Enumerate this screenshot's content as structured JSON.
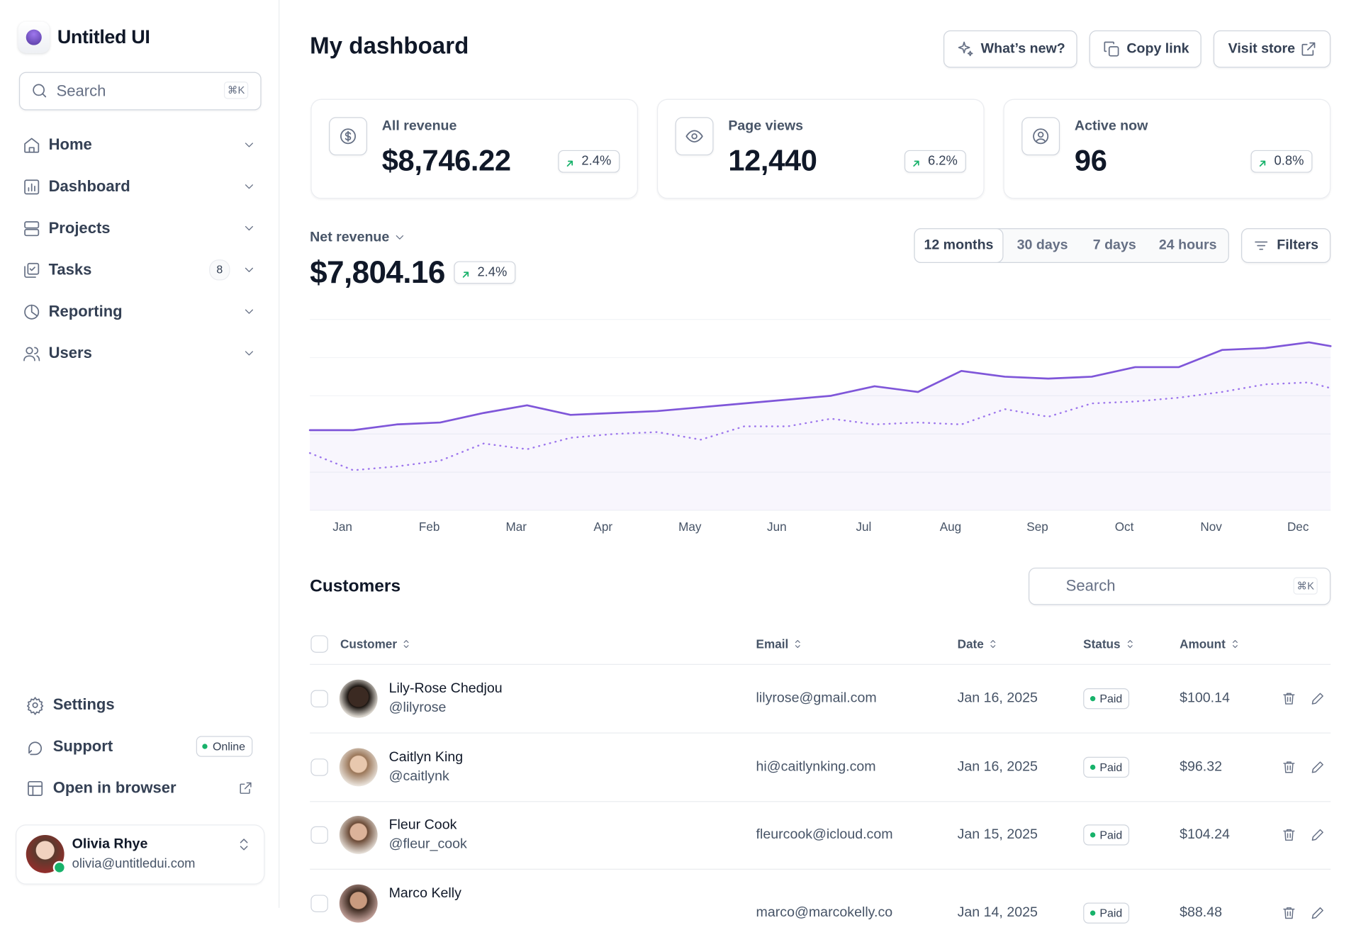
{
  "sidebar": {
    "brand": "Untitled UI",
    "search": {
      "placeholder": "Search",
      "shortcut": "⌘K"
    },
    "nav": [
      {
        "label": "Home",
        "icon": "home"
      },
      {
        "label": "Dashboard",
        "icon": "dashboard"
      },
      {
        "label": "Projects",
        "icon": "projects"
      },
      {
        "label": "Tasks",
        "icon": "tasks",
        "badge": "8"
      },
      {
        "label": "Reporting",
        "icon": "reporting"
      },
      {
        "label": "Users",
        "icon": "users"
      }
    ],
    "footer_nav": [
      {
        "label": "Settings",
        "icon": "settings"
      },
      {
        "label": "Support",
        "icon": "support",
        "status": "Online"
      },
      {
        "label": "Open in browser",
        "icon": "browser"
      }
    ],
    "user": {
      "name": "Olivia Rhye",
      "email": "olivia@untitledui.com"
    }
  },
  "header": {
    "title": "My dashboard",
    "actions": [
      "What’s new?",
      "Copy link",
      "Visit store"
    ]
  },
  "stats": [
    {
      "label": "All revenue",
      "value": "$8,746.22",
      "change": "2.4%",
      "icon": "dollar"
    },
    {
      "label": "Page views",
      "value": "12,440",
      "change": "6.2%",
      "icon": "eye"
    },
    {
      "label": "Active now",
      "value": "96",
      "change": "0.8%",
      "icon": "user"
    }
  ],
  "revenue": {
    "label": "Net revenue",
    "value": "$7,804.16",
    "change": "2.4%",
    "ranges": [
      "12 months",
      "30 days",
      "7 days",
      "24 hours"
    ],
    "active_range": 0,
    "filters": "Filters"
  },
  "chart_data": {
    "type": "line",
    "x": [
      0,
      1,
      2,
      3,
      4,
      5,
      6,
      7,
      8,
      9,
      10,
      11,
      12,
      13,
      14,
      15,
      16,
      17,
      18,
      19,
      20,
      21,
      22,
      23,
      23.5
    ],
    "xlim": [
      0,
      23.5
    ],
    "xticks": [
      {
        "value": 0.75,
        "label": "Jan"
      },
      {
        "value": 2.75,
        "label": "Feb"
      },
      {
        "value": 4.75,
        "label": "Mar"
      },
      {
        "value": 6.75,
        "label": "Apr"
      },
      {
        "value": 8.75,
        "label": "May"
      },
      {
        "value": 10.75,
        "label": "Jun"
      },
      {
        "value": 12.75,
        "label": "Jul"
      },
      {
        "value": 14.75,
        "label": "Aug"
      },
      {
        "value": 16.75,
        "label": "Sep"
      },
      {
        "value": 18.75,
        "label": "Oct"
      },
      {
        "value": 20.75,
        "label": "Nov"
      },
      {
        "value": 22.75,
        "label": "Dec"
      }
    ],
    "ylim": [
      0,
      100
    ],
    "yticks": [
      0,
      20,
      40,
      60,
      80,
      100
    ],
    "grid": true,
    "series": [
      {
        "color": "#7f56d9",
        "style": "solid",
        "area": true,
        "values": [
          42,
          42,
          45,
          46,
          51,
          55,
          50,
          51,
          52,
          54,
          56,
          58,
          60,
          65,
          62,
          73,
          70,
          69,
          70,
          75,
          75,
          84,
          85,
          88,
          86
        ]
      },
      {
        "color": "#9e77ed",
        "style": "dotted",
        "area": false,
        "values": [
          30,
          21,
          23,
          26,
          35,
          32,
          38,
          40,
          41,
          37,
          44,
          44,
          48,
          45,
          46,
          45,
          53,
          49,
          56,
          57,
          59,
          62,
          66,
          67,
          64
        ]
      }
    ]
  },
  "customers": {
    "title": "Customers",
    "search": {
      "placeholder": "Search",
      "shortcut": "⌘K"
    },
    "columns": [
      "Customer",
      "Email",
      "Date",
      "Status",
      "Amount"
    ],
    "rows": [
      {
        "name": "Lily-Rose Chedjou",
        "handle": "@lilyrose",
        "email": "lilyrose@gmail.com",
        "date": "Jan 16, 2025",
        "status": "Paid",
        "amount": "$100.14"
      },
      {
        "name": "Caitlyn King",
        "handle": "@caitlynk",
        "email": "hi@caitlynking.com",
        "date": "Jan 16, 2025",
        "status": "Paid",
        "amount": "$96.32"
      },
      {
        "name": "Fleur Cook",
        "handle": "@fleur_cook",
        "email": "fleurcook@icloud.com",
        "date": "Jan 15, 2025",
        "status": "Paid",
        "amount": "$104.24"
      },
      {
        "name": "Marco Kelly",
        "email": "marco@marcokelly.co",
        "date": "Jan 14, 2025",
        "status": "Paid",
        "amount": "$88.48"
      }
    ]
  }
}
